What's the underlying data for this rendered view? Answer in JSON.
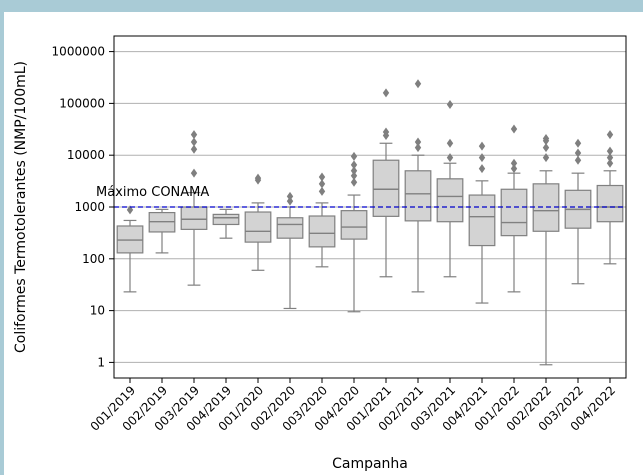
{
  "chart_data": {
    "type": "boxplot",
    "title": "",
    "xlabel": "Campanha",
    "ylabel": "Coliformes Termotolerantes (NMP/100mL)",
    "yscale": "log",
    "ylim": [
      0.5,
      2000000
    ],
    "yticks": [
      "1",
      "10",
      "100",
      "1000",
      "10000",
      "100000",
      "1000000"
    ],
    "grid": "y",
    "reference_line": {
      "label": "Máximo CONAMA",
      "value": 1000,
      "color": "#0000cc",
      "style": "dashed"
    },
    "box_color": "#d3d3d3",
    "edge_color": "#808080",
    "categories": [
      "001/2019",
      "002/2019",
      "003/2019",
      "004/2019",
      "001/2020",
      "002/2020",
      "003/2020",
      "004/2020",
      "001/2021",
      "002/2021",
      "003/2021",
      "004/2021",
      "001/2022",
      "002/2022",
      "003/2022",
      "004/2022"
    ],
    "boxes": [
      {
        "low": 23,
        "q1": 130,
        "median": 230,
        "q3": 430,
        "high": 550,
        "outliers": [
          880
        ]
      },
      {
        "low": 130,
        "q1": 330,
        "median": 520,
        "q3": 780,
        "high": 900,
        "outliers": []
      },
      {
        "low": 31,
        "q1": 370,
        "median": 580,
        "q3": 1000,
        "high": 1900,
        "outliers": [
          4500,
          13000,
          18000,
          25000
        ]
      },
      {
        "low": 250,
        "q1": 460,
        "median": 620,
        "q3": 720,
        "high": 900,
        "outliers": []
      },
      {
        "low": 60,
        "q1": 210,
        "median": 340,
        "q3": 800,
        "high": 1200,
        "outliers": [
          3300,
          3600
        ]
      },
      {
        "low": 11,
        "q1": 250,
        "median": 460,
        "q3": 620,
        "high": 1000,
        "outliers": [
          1300,
          1600
        ]
      },
      {
        "low": 70,
        "q1": 170,
        "median": 310,
        "q3": 670,
        "high": 1200,
        "outliers": [
          2000,
          2800,
          3800
        ]
      },
      {
        "low": 9.5,
        "q1": 240,
        "median": 410,
        "q3": 850,
        "high": 1700,
        "outliers": [
          3000,
          4000,
          5000,
          6500,
          9500
        ]
      },
      {
        "low": 45,
        "q1": 660,
        "median": 2200,
        "q3": 8000,
        "high": 17000,
        "outliers": [
          24000,
          28000,
          160000
        ]
      },
      {
        "low": 23,
        "q1": 540,
        "median": 1800,
        "q3": 5000,
        "high": 10000,
        "outliers": [
          14000,
          18000,
          240000
        ]
      },
      {
        "low": 45,
        "q1": 520,
        "median": 1600,
        "q3": 3500,
        "high": 7000,
        "outliers": [
          9000,
          17000,
          95000
        ]
      },
      {
        "low": 14,
        "q1": 180,
        "median": 650,
        "q3": 1700,
        "high": 3200,
        "outliers": [
          5500,
          9000,
          15000
        ]
      },
      {
        "low": 23,
        "q1": 280,
        "median": 500,
        "q3": 2200,
        "high": 4500,
        "outliers": [
          5500,
          7000,
          32000
        ]
      },
      {
        "low": 0.9,
        "q1": 340,
        "median": 850,
        "q3": 2800,
        "high": 5000,
        "outliers": [
          9000,
          14000,
          19000,
          21000
        ]
      },
      {
        "low": 33,
        "q1": 390,
        "median": 900,
        "q3": 2100,
        "high": 4500,
        "outliers": [
          8000,
          11000,
          17000
        ]
      },
      {
        "low": 80,
        "q1": 520,
        "median": 1000,
        "q3": 2600,
        "high": 5000,
        "outliers": [
          7000,
          9000,
          12000,
          25000
        ]
      }
    ]
  }
}
